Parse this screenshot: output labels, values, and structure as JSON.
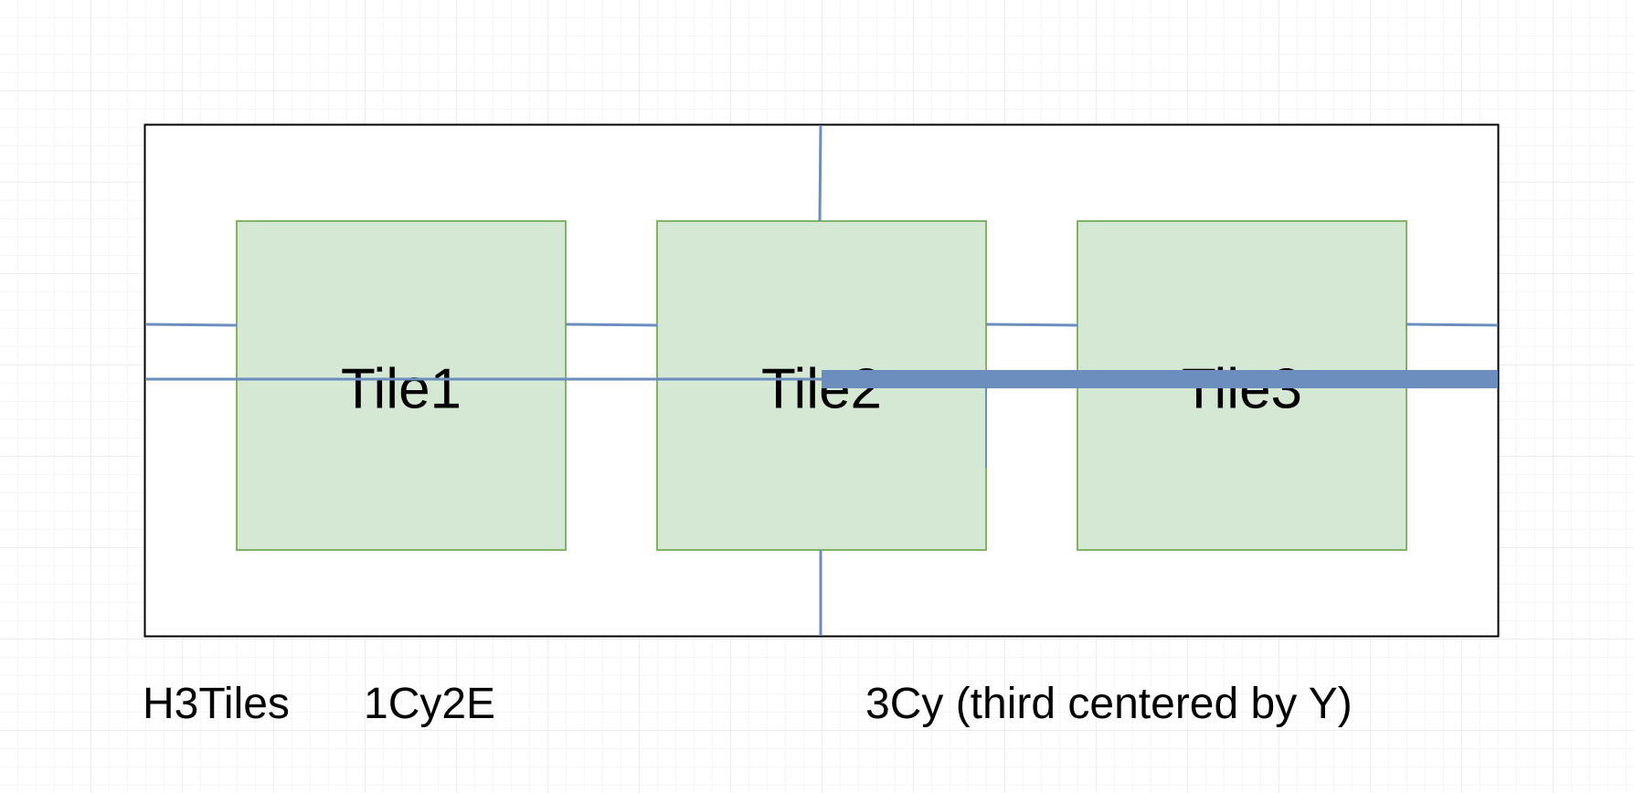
{
  "tiles": [
    {
      "label": "Tile1"
    },
    {
      "label": "Tile2"
    },
    {
      "label": "Tile3"
    }
  ],
  "captions": [
    "H3Tiles",
    "1Cy2E",
    "3Cy (third centered by Y)"
  ],
  "colors": {
    "tile_fill": "#d5e8d4",
    "tile_stroke": "#82b366",
    "guide_line": "#6c8ebf",
    "container_stroke": "#000000",
    "text": "#000000"
  }
}
